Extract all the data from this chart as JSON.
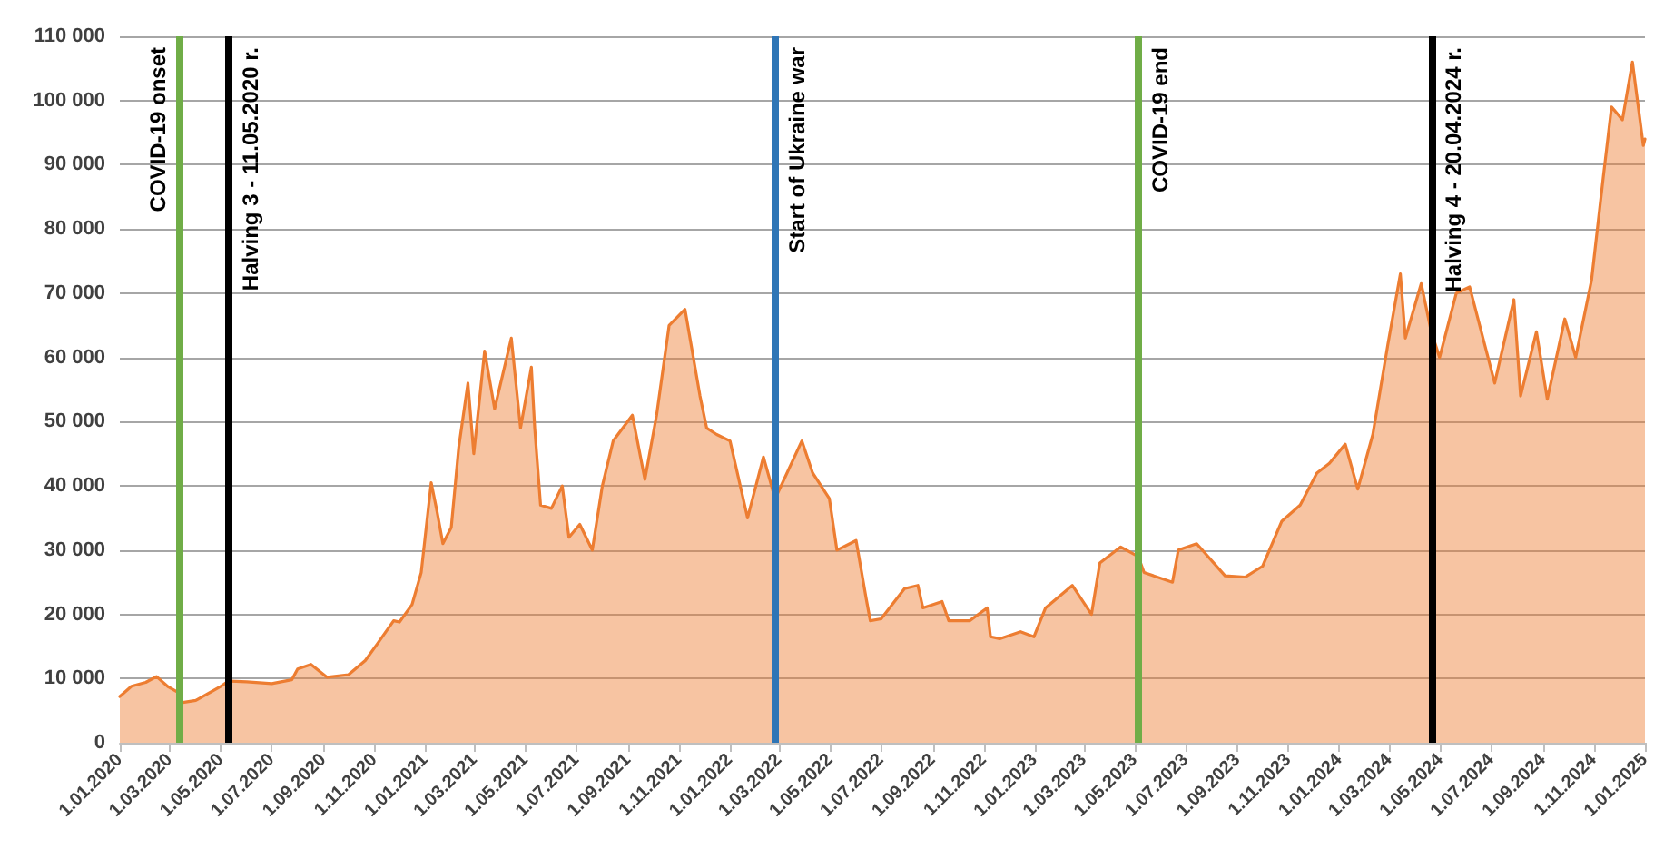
{
  "chart_data": {
    "type": "area",
    "color": "#ed7d31",
    "x": [
      "2020-01-01",
      "2020-01-15",
      "2020-02-01",
      "2020-02-14",
      "2020-02-28",
      "2020-03-10",
      "2020-03-13",
      "2020-04-01",
      "2020-04-30",
      "2020-05-10",
      "2020-06-01",
      "2020-07-01",
      "2020-07-25",
      "2020-08-01",
      "2020-08-17",
      "2020-09-05",
      "2020-10-01",
      "2020-10-21",
      "2020-11-05",
      "2020-11-24",
      "2020-12-01",
      "2020-12-16",
      "2020-12-27",
      "2021-01-08",
      "2021-01-15",
      "2021-01-22",
      "2021-02-01",
      "2021-02-10",
      "2021-02-21",
      "2021-02-28",
      "2021-03-13",
      "2021-03-25",
      "2021-04-14",
      "2021-04-25",
      "2021-05-08",
      "2021-05-12",
      "2021-05-19",
      "2021-06-01",
      "2021-06-14",
      "2021-06-22",
      "2021-07-05",
      "2021-07-20",
      "2021-08-01",
      "2021-08-14",
      "2021-09-06",
      "2021-09-21",
      "2021-10-05",
      "2021-10-20",
      "2021-11-08",
      "2021-11-26",
      "2021-12-04",
      "2021-12-16",
      "2022-01-01",
      "2022-01-22",
      "2022-02-10",
      "2022-02-24",
      "2022-03-28",
      "2022-04-10",
      "2022-04-30",
      "2022-05-09",
      "2022-06-01",
      "2022-06-13",
      "2022-06-18",
      "2022-07-01",
      "2022-07-29",
      "2022-08-14",
      "2022-08-20",
      "2022-09-12",
      "2022-09-20",
      "2022-10-15",
      "2022-11-05",
      "2022-11-09",
      "2022-11-20",
      "2022-12-15",
      "2022-12-31",
      "2023-01-14",
      "2023-02-15",
      "2023-03-10",
      "2023-03-20",
      "2023-04-14",
      "2023-05-05",
      "2023-05-12",
      "2023-06-15",
      "2023-06-22",
      "2023-07-14",
      "2023-08-17",
      "2023-09-10",
      "2023-10-01",
      "2023-10-24",
      "2023-11-15",
      "2023-12-05",
      "2023-12-20",
      "2024-01-08",
      "2024-01-23",
      "2024-02-10",
      "2024-02-28",
      "2024-03-14",
      "2024-03-20",
      "2024-04-08",
      "2024-04-20",
      "2024-04-30",
      "2024-05-20",
      "2024-06-05",
      "2024-07-05",
      "2024-07-28",
      "2024-08-05",
      "2024-08-24",
      "2024-09-06",
      "2024-09-27",
      "2024-10-10",
      "2024-10-29",
      "2024-11-12",
      "2024-11-22",
      "2024-12-05",
      "2024-12-17",
      "2024-12-30",
      "2025-01-01"
    ],
    "values": [
      7200,
      8800,
      9400,
      10300,
      8700,
      7900,
      6200,
      6600,
      8700,
      9600,
      9500,
      9200,
      9800,
      11500,
      12200,
      10200,
      10600,
      12800,
      15500,
      19000,
      18800,
      21500,
      26500,
      40500,
      36000,
      31000,
      33500,
      46000,
      56000,
      45000,
      61000,
      52000,
      63000,
      49000,
      58500,
      49000,
      37000,
      36500,
      40000,
      32000,
      34000,
      30000,
      40000,
      47000,
      51000,
      41000,
      51000,
      65000,
      67500,
      54000,
      49000,
      48000,
      47000,
      35000,
      44500,
      38000,
      47000,
      42000,
      38000,
      30000,
      31500,
      22500,
      19000,
      19300,
      24000,
      24500,
      21000,
      22000,
      19000,
      19000,
      21000,
      16500,
      16200,
      17300,
      16500,
      21000,
      24500,
      20000,
      28000,
      30500,
      29000,
      26500,
      25000,
      30000,
      31000,
      26000,
      25800,
      27500,
      34500,
      37000,
      42000,
      43500,
      46500,
      39500,
      48000,
      62000,
      73000,
      63000,
      71500,
      64000,
      60000,
      70000,
      71000,
      56000,
      69000,
      54000,
      64000,
      53500,
      66000,
      60000,
      72000,
      88000,
      99000,
      97000,
      106000,
      93000,
      94000
    ],
    "xlim": [
      "2020-01-01",
      "2025-01-01"
    ],
    "xticks": [
      {
        "value": "2020-01-01",
        "label": "1.01.2020"
      },
      {
        "value": "2020-03-01",
        "label": "1.03.2020"
      },
      {
        "value": "2020-05-01",
        "label": "1.05.2020"
      },
      {
        "value": "2020-07-01",
        "label": "1.07.2020"
      },
      {
        "value": "2020-09-01",
        "label": "1.09.2020"
      },
      {
        "value": "2020-11-01",
        "label": "1.11.2020"
      },
      {
        "value": "2021-01-01",
        "label": "1.01.2021"
      },
      {
        "value": "2021-03-01",
        "label": "1.03.2021"
      },
      {
        "value": "2021-05-01",
        "label": "1.05.2021"
      },
      {
        "value": "2021-07-01",
        "label": "1.07.2021"
      },
      {
        "value": "2021-09-01",
        "label": "1.09.2021"
      },
      {
        "value": "2021-11-01",
        "label": "1.11.2021"
      },
      {
        "value": "2022-01-01",
        "label": "1.01.2022"
      },
      {
        "value": "2022-03-01",
        "label": "1.03.2022"
      },
      {
        "value": "2022-05-01",
        "label": "1.05.2022"
      },
      {
        "value": "2022-07-01",
        "label": "1.07.2022"
      },
      {
        "value": "2022-09-01",
        "label": "1.09.2022"
      },
      {
        "value": "2022-11-01",
        "label": "1.11.2022"
      },
      {
        "value": "2023-01-01",
        "label": "1.01.2023"
      },
      {
        "value": "2023-03-01",
        "label": "1.03.2023"
      },
      {
        "value": "2023-05-01",
        "label": "1.05.2023"
      },
      {
        "value": "2023-07-01",
        "label": "1.07.2023"
      },
      {
        "value": "2023-09-01",
        "label": "1.09.2023"
      },
      {
        "value": "2023-11-01",
        "label": "1.11.2023"
      },
      {
        "value": "2024-01-01",
        "label": "1.01.2024"
      },
      {
        "value": "2024-03-01",
        "label": "1.03.2024"
      },
      {
        "value": "2024-05-01",
        "label": "1.05.2024"
      },
      {
        "value": "2024-07-01",
        "label": "1.07.2024"
      },
      {
        "value": "2024-09-01",
        "label": "1.09.2024"
      },
      {
        "value": "2024-11-01",
        "label": "1.11.2024"
      },
      {
        "value": "2025-01-01",
        "label": "1.01.2025"
      }
    ],
    "ylim": [
      0,
      110000
    ],
    "yticks": [
      {
        "value": 0,
        "label": "0"
      },
      {
        "value": 10000,
        "label": "10 000"
      },
      {
        "value": 20000,
        "label": "20 000"
      },
      {
        "value": 30000,
        "label": "30 000"
      },
      {
        "value": 40000,
        "label": "40 000"
      },
      {
        "value": 50000,
        "label": "50 000"
      },
      {
        "value": 60000,
        "label": "60 000"
      },
      {
        "value": 70000,
        "label": "70 000"
      },
      {
        "value": 80000,
        "label": "80 000"
      },
      {
        "value": 90000,
        "label": "90 000"
      },
      {
        "value": 100000,
        "label": "100 000"
      },
      {
        "value": 110000,
        "label": "110 000"
      }
    ],
    "ref_lines": [
      {
        "axis": "x",
        "value": "2020-03-13",
        "label": "COVID-19 onset",
        "color": "#70ad47"
      },
      {
        "axis": "x",
        "value": "2020-05-11",
        "label": "Halving 3 - 11.05.2020 r.",
        "color": "#000000"
      },
      {
        "axis": "x",
        "value": "2022-02-24",
        "label": "Start of Ukraine war",
        "color": "#2e75b6"
      },
      {
        "axis": "x",
        "value": "2023-05-05",
        "label": "COVID-19 end",
        "color": "#70ad47"
      },
      {
        "axis": "x",
        "value": "2024-04-20",
        "label": "Halving 4 - 20.04.2024 r.",
        "color": "#000000"
      }
    ],
    "grid": "y",
    "marker": "none",
    "line_style": "solid"
  }
}
